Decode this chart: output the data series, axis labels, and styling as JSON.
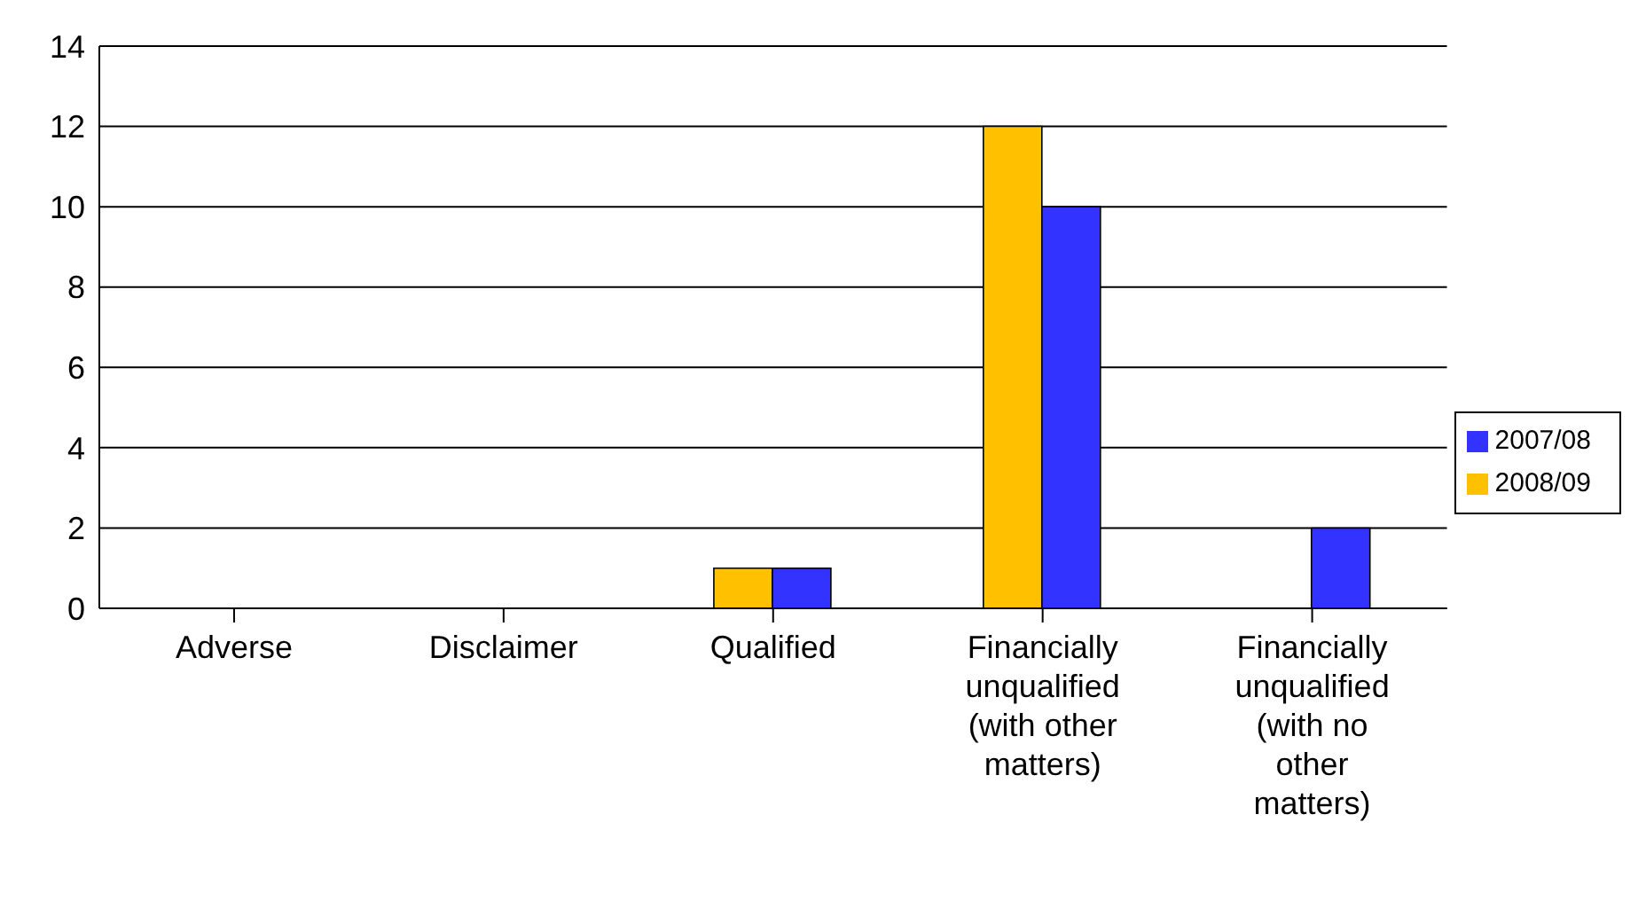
{
  "chart_data": {
    "type": "bar",
    "categories": [
      "Adverse",
      "Disclaimer",
      "Qualified",
      "Financially unqualified (with other matters)",
      "Financially unqualified (with no other matters)"
    ],
    "series": [
      {
        "name": "2008/09",
        "color": "#ffc000",
        "values": [
          0,
          0,
          1,
          12,
          0
        ]
      },
      {
        "name": "2007/08",
        "color": "#3333ff",
        "values": [
          0,
          0,
          1,
          10,
          2
        ]
      }
    ],
    "ylim": [
      0,
      14
    ],
    "yticks": [
      0,
      2,
      4,
      6,
      8,
      10,
      12,
      14
    ],
    "grid": "y",
    "legend": "right"
  }
}
